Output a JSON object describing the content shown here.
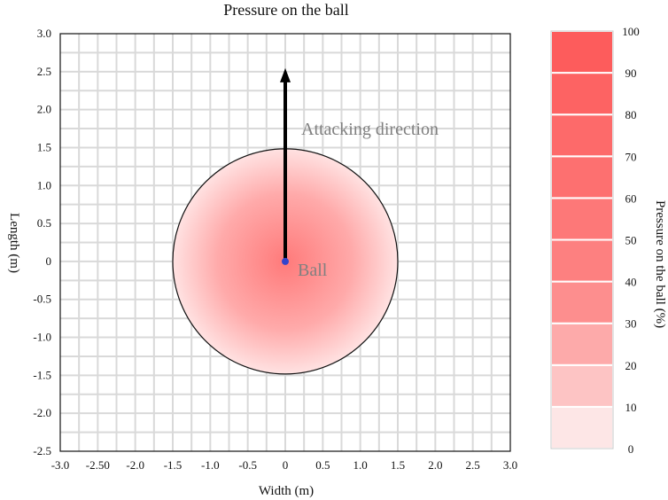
{
  "chart_data": {
    "type": "heatmap",
    "title": "Pressure on the ball",
    "xlabel": "Width (m)",
    "ylabel": "Length (m)",
    "xlim": [
      -3.0,
      3.0
    ],
    "ylim": [
      -2.5,
      3.0
    ],
    "x_ticks": [
      "-3.0",
      "-2.50",
      "-2.0",
      "-1.5",
      "-1.0",
      "-0.5",
      "0",
      "0.5",
      "1.0",
      "1.5",
      "2.0",
      "2.5",
      "3.0"
    ],
    "y_ticks": [
      "3.0",
      "2.5",
      "2.0",
      "1.5",
      "1.0",
      "0.5",
      "0",
      "-0.5",
      "-1.0",
      "-1.5",
      "-2.0",
      "-2.5"
    ],
    "grid": true,
    "pressure_zone": {
      "center_x": 0,
      "center_y": 0,
      "radius": 1.5,
      "center_pressure_pct": 50
    },
    "ball": {
      "x": 0,
      "y": 0,
      "label": "Ball",
      "color": "#3344cc"
    },
    "arrow": {
      "from": [
        0,
        0
      ],
      "to": [
        0,
        2.5
      ],
      "label": "Attacking direction"
    },
    "colorbar": {
      "label": "Pressure on the ball (%)",
      "ticks": [
        "100",
        "90",
        "80",
        "70",
        "60",
        "50",
        "40",
        "30",
        "20",
        "10",
        "0"
      ],
      "colors": [
        "#fde6e6",
        "#fdc4c4",
        "#fdaaaa",
        "#fd8e8e",
        "#fd8080",
        "#fd7878",
        "#fd7070",
        "#fd6a6a",
        "#fd6363",
        "#fd5c5c"
      ]
    }
  }
}
